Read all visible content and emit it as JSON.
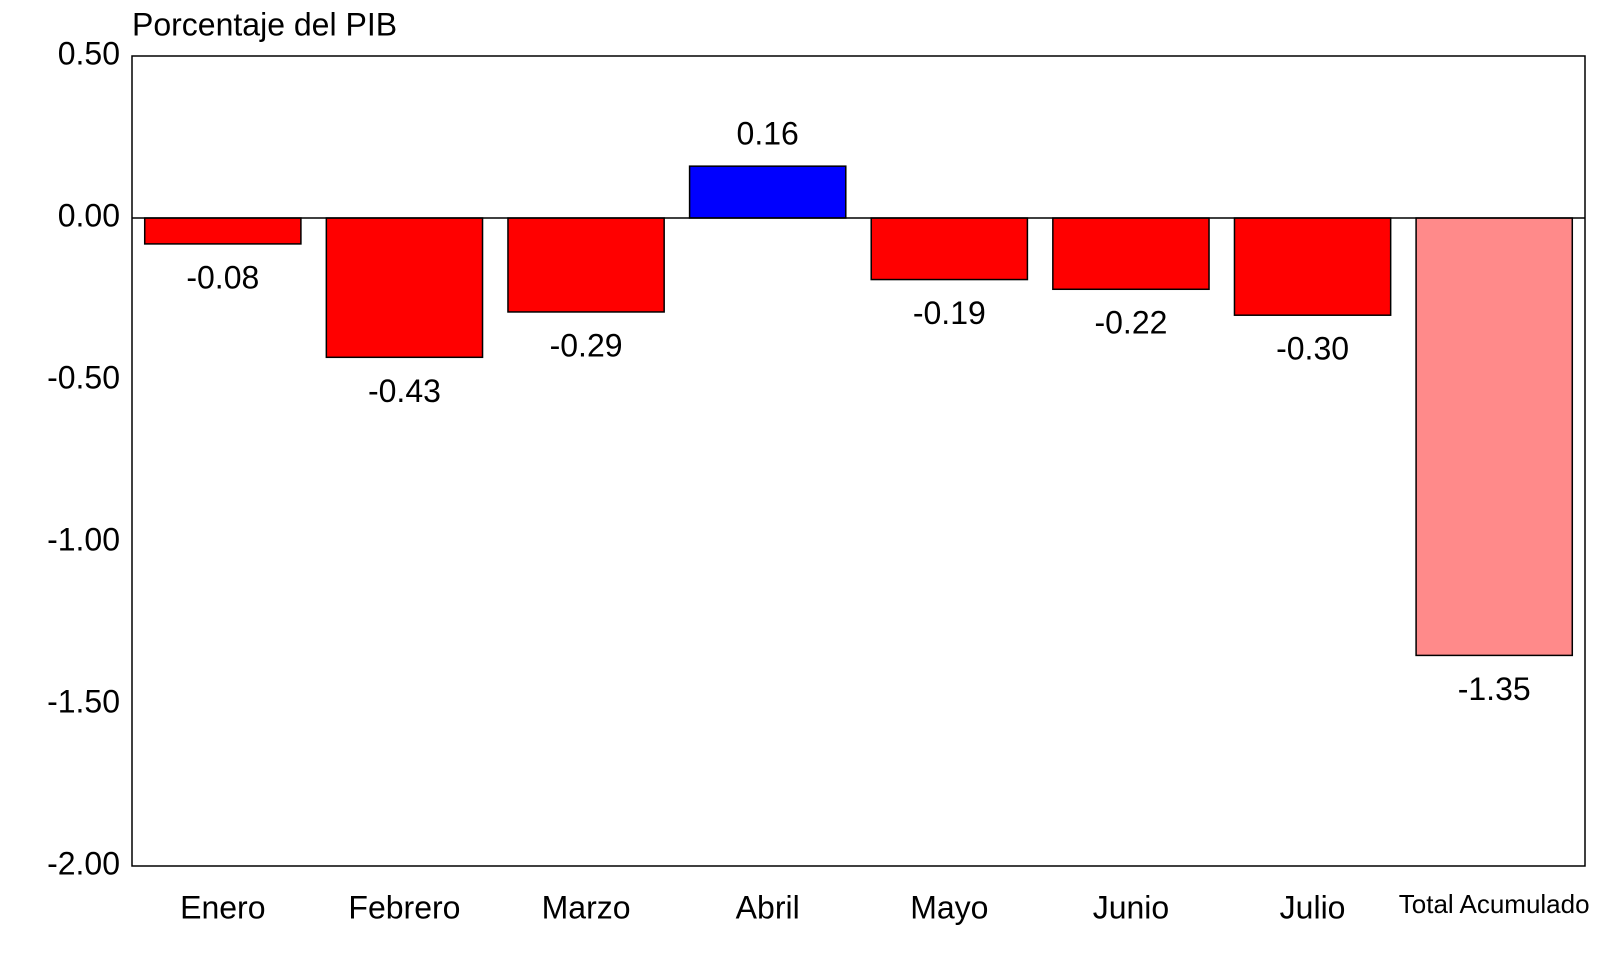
{
  "chart_data": {
    "type": "bar",
    "title": "Porcentaje del PIB",
    "categories": [
      "Enero",
      "Febrero",
      "Marzo",
      "Abril",
      "Mayo",
      "Junio",
      "Julio",
      "Total Acumulado"
    ],
    "values": [
      -0.08,
      -0.43,
      -0.29,
      0.16,
      -0.19,
      -0.22,
      -0.3,
      -1.35
    ],
    "value_labels": [
      "-0.08",
      "-0.43",
      "-0.29",
      "0.16",
      "-0.19",
      "-0.22",
      "-0.30",
      "-1.35"
    ],
    "colors": [
      "#ff0000",
      "#ff0000",
      "#ff0000",
      "#0000ff",
      "#ff0000",
      "#ff0000",
      "#ff0000",
      "#ff8a8a"
    ],
    "ylim": [
      -2,
      0.5
    ],
    "yticks": [
      {
        "value": 0.5,
        "label": "0.50"
      },
      {
        "value": 0,
        "label": "0.00"
      },
      {
        "value": -0.5,
        "label": "-0.50"
      },
      {
        "value": -1,
        "label": "-1.00"
      },
      {
        "value": -1.5,
        "label": "-1.50"
      },
      {
        "value": -2,
        "label": "-2.00"
      }
    ],
    "grid": false
  }
}
